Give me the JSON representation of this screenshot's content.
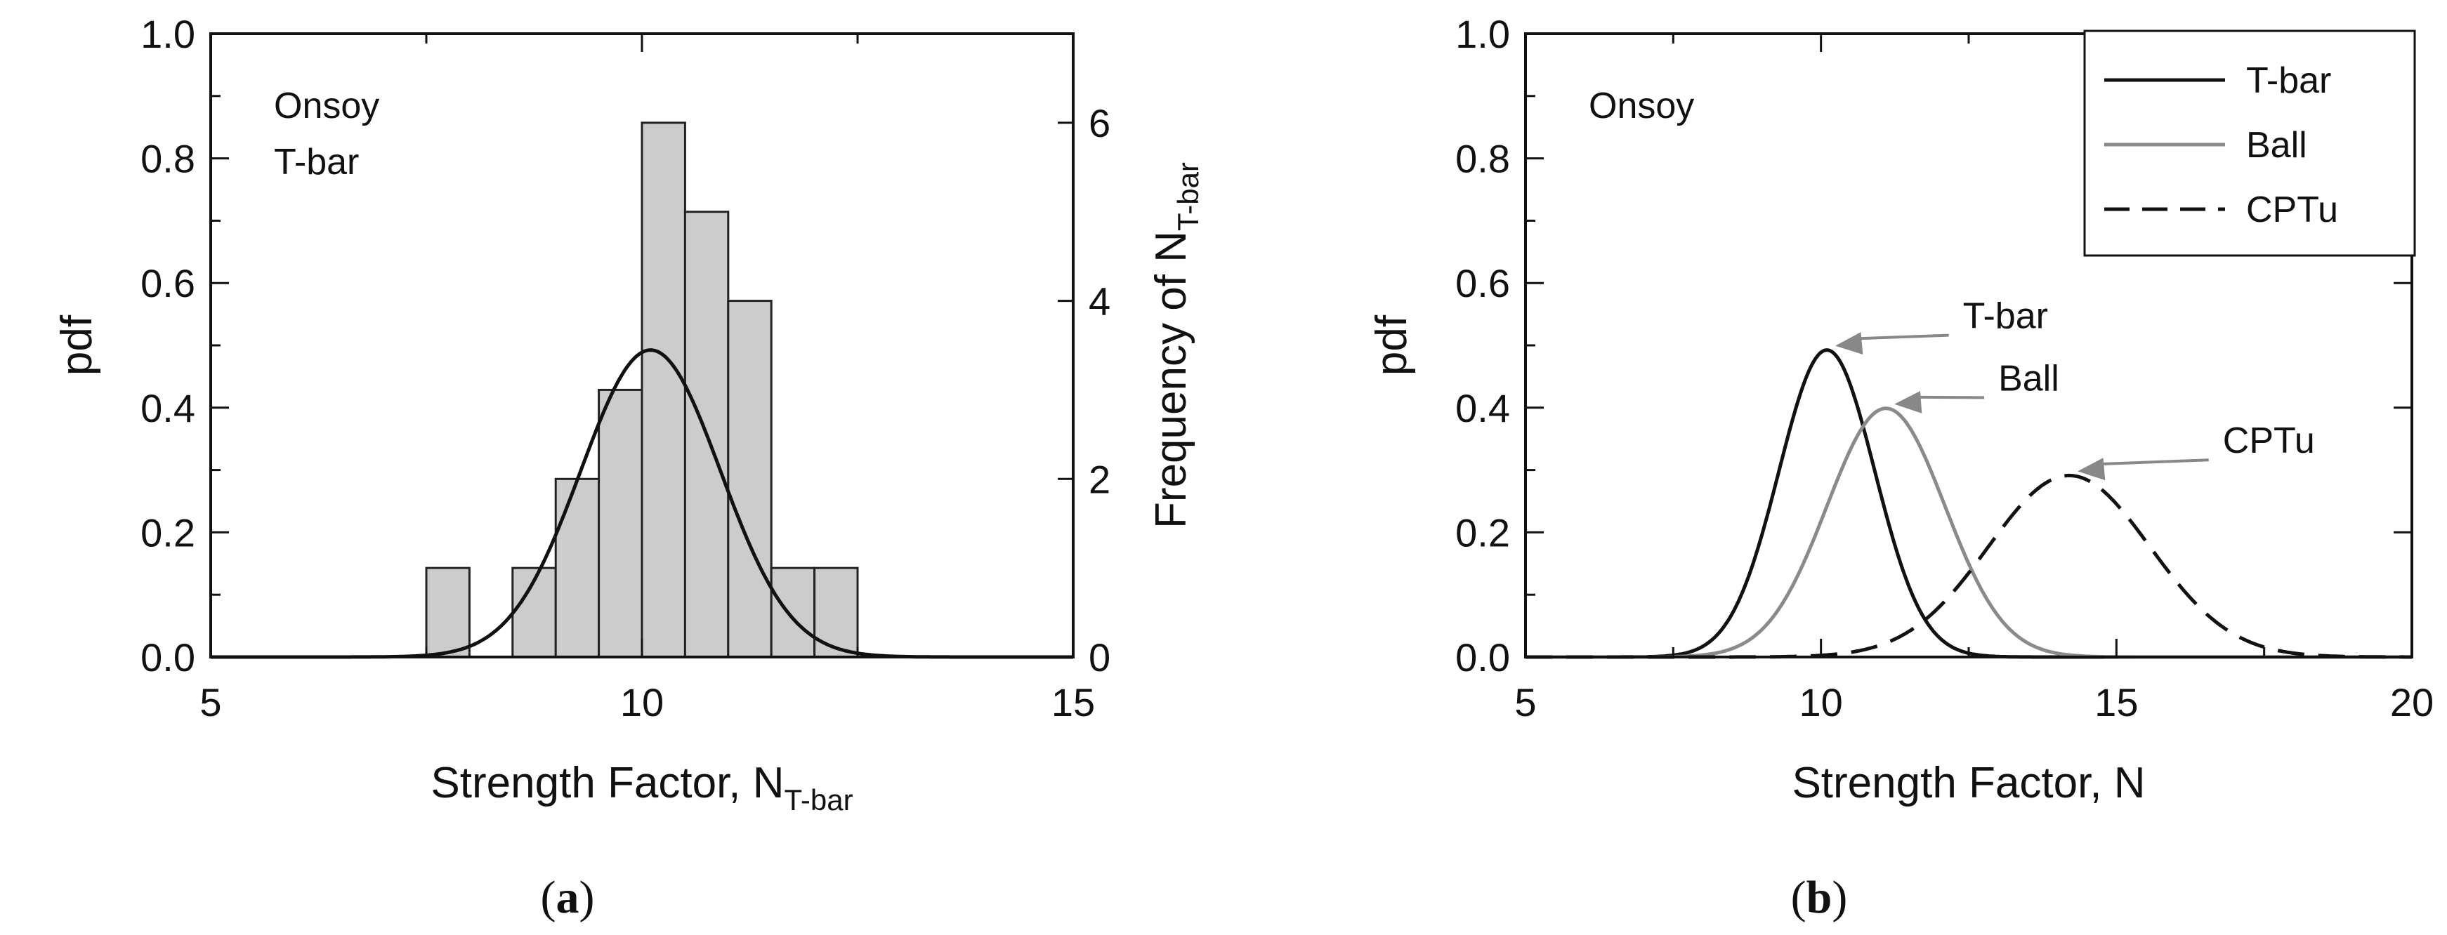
{
  "chart_data": [
    {
      "panel_label": "(a)",
      "panel_letter": "a",
      "type": "bar",
      "title": "",
      "annotations": [
        "Onsoy",
        "T-bar"
      ],
      "xlabel_main": "Strength Factor, N",
      "xlabel_sub": "T-bar",
      "ylabel": "pdf",
      "ylabel_right_main": "Frequency of N",
      "ylabel_right_sub": "T-bar",
      "xlim": [
        5,
        15
      ],
      "ylim": [
        0,
        1.0
      ],
      "ylim_right": [
        0,
        7
      ],
      "x_ticks": [
        "5",
        "10",
        "15"
      ],
      "y_ticks": [
        "0.0",
        "0.2",
        "0.4",
        "0.6",
        "0.8",
        "1.0"
      ],
      "y_right_ticks": [
        "0",
        "2",
        "4",
        "6"
      ],
      "histogram": {
        "bin_width": 0.5,
        "bins": [
          {
            "x0": 7.5,
            "count": 1
          },
          {
            "x0": 8.5,
            "count": 1
          },
          {
            "x0": 9.0,
            "count": 2
          },
          {
            "x0": 9.5,
            "count": 3
          },
          {
            "x0": 10.0,
            "count": 6
          },
          {
            "x0": 10.5,
            "count": 5
          },
          {
            "x0": 11.0,
            "count": 4
          },
          {
            "x0": 11.5,
            "count": 1
          },
          {
            "x0": 12.0,
            "count": 1
          }
        ],
        "fill": "#cccccc"
      },
      "series": [
        {
          "curve": "normal",
          "mean": 10.1,
          "sd": 0.81,
          "color": "#111111",
          "dash": "solid"
        }
      ]
    },
    {
      "panel_label": "(b)",
      "panel_letter": "b",
      "type": "line",
      "title": "",
      "annotations": [
        "Onsoy"
      ],
      "xlabel": "Strength Factor, N",
      "ylabel": "pdf",
      "xlim": [
        5,
        20
      ],
      "ylim": [
        0,
        1.0
      ],
      "x_ticks": [
        "5",
        "10",
        "15",
        "20"
      ],
      "y_ticks": [
        "0.0",
        "0.2",
        "0.4",
        "0.6",
        "0.8",
        "1.0"
      ],
      "legend_position": "top-right",
      "series": [
        {
          "name": "T-bar",
          "curve": "normal",
          "mean": 10.1,
          "sd": 0.81,
          "color": "#111111",
          "dash": "solid",
          "callout": {
            "label": "T-bar",
            "label_x": 12.4,
            "label_y": 0.55
          }
        },
        {
          "name": "Ball",
          "curve": "normal",
          "mean": 11.1,
          "sd": 1.0,
          "color": "#8a8a8a",
          "dash": "solid",
          "callout": {
            "label": "Ball",
            "label_x": 13.0,
            "label_y": 0.45
          }
        },
        {
          "name": "CPTu",
          "curve": "normal",
          "mean": 14.2,
          "sd": 1.37,
          "color": "#111111",
          "dash": "dashed",
          "callout": {
            "label": "CPTu",
            "label_x": 16.8,
            "label_y": 0.35
          }
        }
      ]
    }
  ]
}
